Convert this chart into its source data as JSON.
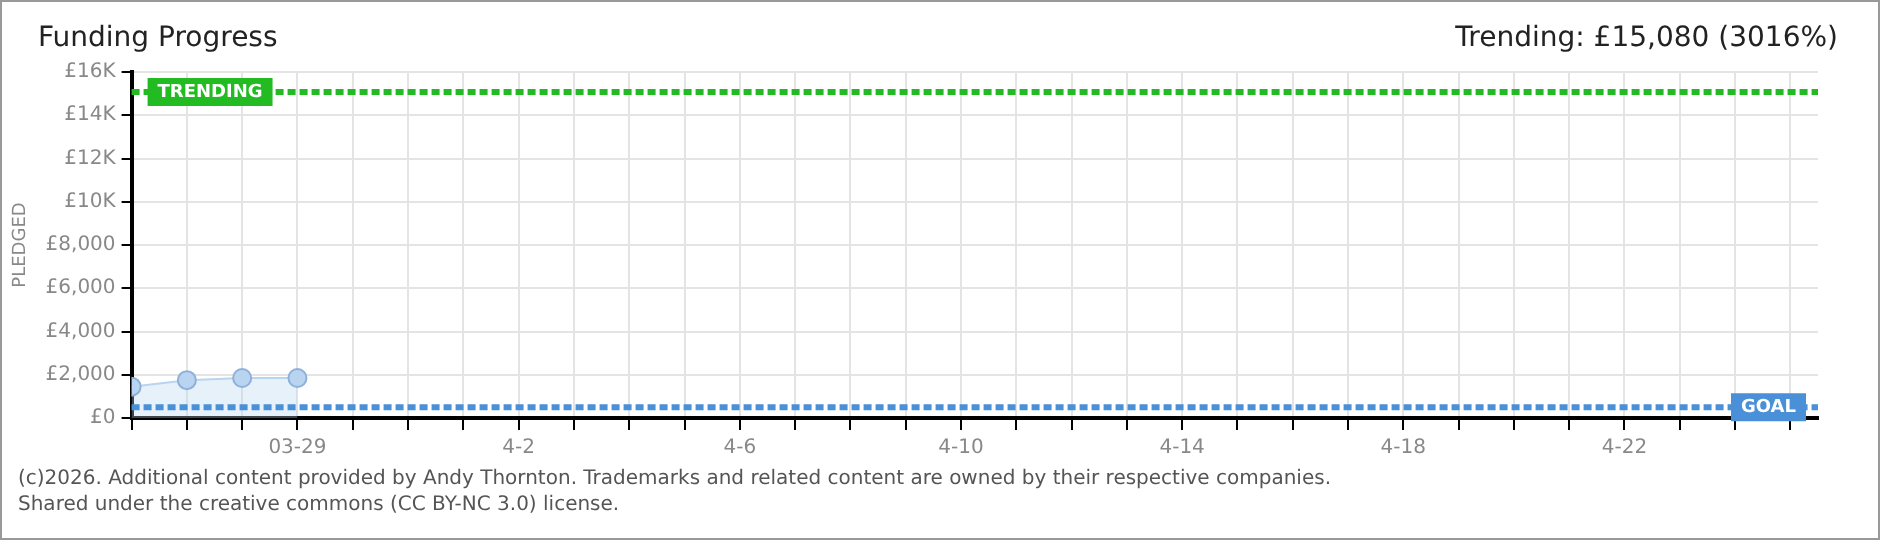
{
  "chart_data": {
    "type": "area",
    "title": "Funding Progress",
    "subtitle": "Trending:  £15,080 (3016%)",
    "ylabel": "PLEDGED",
    "x": [
      "2026-03-26",
      "2026-03-27",
      "2026-03-28",
      "2026-03-29"
    ],
    "series": [
      {
        "color": "#b8d4f0",
        "values": [
          1450,
          1750,
          1850,
          1850
        ]
      }
    ],
    "marker": "circle",
    "grid": true,
    "ylim": [
      0,
      16000
    ],
    "yticks": [
      {
        "value": 0,
        "label": "£0"
      },
      {
        "value": 2000,
        "label": "£2,000"
      },
      {
        "value": 4000,
        "label": "£4,000"
      },
      {
        "value": 6000,
        "label": "£6,000"
      },
      {
        "value": 8000,
        "label": "£8,000"
      },
      {
        "value": 10000,
        "label": "£10K"
      },
      {
        "value": 12000,
        "label": "£12K"
      },
      {
        "value": 14000,
        "label": "£14K"
      },
      {
        "value": 16000,
        "label": "£16K"
      }
    ],
    "xlim": [
      "2026-03-26",
      "2026-04-25T12:00"
    ],
    "xticks": [
      {
        "value": "2026-03-26",
        "label": null
      },
      {
        "value": "2026-03-27",
        "label": null
      },
      {
        "value": "2026-03-28",
        "label": null
      },
      {
        "value": "2026-03-29",
        "label": "03-29"
      },
      {
        "value": "2026-03-30",
        "label": null
      },
      {
        "value": "2026-03-31",
        "label": null
      },
      {
        "value": "2026-04-01",
        "label": null
      },
      {
        "value": "2026-04-02",
        "label": "4-2"
      },
      {
        "value": "2026-04-03",
        "label": null
      },
      {
        "value": "2026-04-04",
        "label": null
      },
      {
        "value": "2026-04-05",
        "label": null
      },
      {
        "value": "2026-04-06",
        "label": "4-6"
      },
      {
        "value": "2026-04-07",
        "label": null
      },
      {
        "value": "2026-04-08",
        "label": null
      },
      {
        "value": "2026-04-09",
        "label": null
      },
      {
        "value": "2026-04-10",
        "label": "4-10"
      },
      {
        "value": "2026-04-11",
        "label": null
      },
      {
        "value": "2026-04-12",
        "label": null
      },
      {
        "value": "2026-04-13",
        "label": null
      },
      {
        "value": "2026-04-14",
        "label": "4-14"
      },
      {
        "value": "2026-04-15",
        "label": null
      },
      {
        "value": "2026-04-16",
        "label": null
      },
      {
        "value": "2026-04-17",
        "label": null
      },
      {
        "value": "2026-04-18",
        "label": "4-18"
      },
      {
        "value": "2026-04-19",
        "label": null
      },
      {
        "value": "2026-04-20",
        "label": null
      },
      {
        "value": "2026-04-21",
        "label": null
      },
      {
        "value": "2026-04-22",
        "label": "4-22"
      },
      {
        "value": "2026-04-23",
        "label": null
      },
      {
        "value": "2026-04-24",
        "label": null
      },
      {
        "value": "2026-04-25",
        "label": null
      }
    ],
    "ref_lines": [
      {
        "axis": "y",
        "value": 15080,
        "label": "TRENDING",
        "color": "#22bb22",
        "line_style": "dashed"
      },
      {
        "axis": "y",
        "value": 500,
        "label": "GOAL",
        "color": "#4a90d9",
        "line_style": "dashed"
      }
    ],
    "annotations": [
      "(c)2026. Additional content provided by Andy Thornton. Trademarks and related content are owned by their respective companies.",
      "Shared under the creative commons (CC BY-NC 3.0) license."
    ]
  }
}
